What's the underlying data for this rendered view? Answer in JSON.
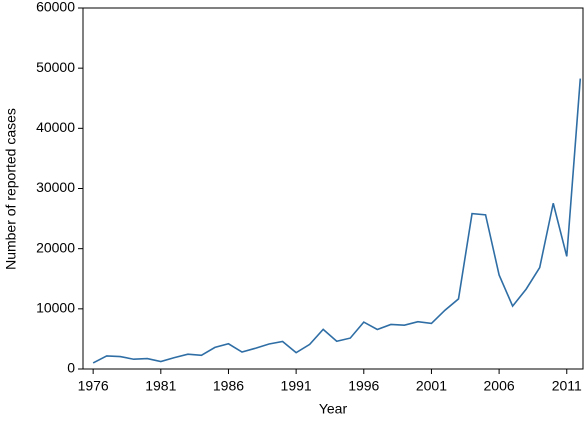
{
  "chart_data": {
    "type": "line",
    "x_label": "Year",
    "y_label": "Number of reported cases",
    "x": [
      1976,
      1977,
      1978,
      1979,
      1980,
      1981,
      1982,
      1983,
      1984,
      1985,
      1986,
      1987,
      1988,
      1989,
      1990,
      1991,
      1992,
      1993,
      1994,
      1995,
      1996,
      1997,
      1998,
      1999,
      2000,
      2001,
      2002,
      2003,
      2004,
      2005,
      2006,
      2007,
      2008,
      2009,
      2010,
      2011,
      2012
    ],
    "series": [
      {
        "color": "#2f6ea5",
        "values": [
          1010,
          2177,
          2063,
          1623,
          1730,
          1248,
          1895,
          2463,
          2276,
          3589,
          4195,
          2823,
          3450,
          4157,
          4570,
          2719,
          4083,
          6586,
          4617,
          5137,
          7796,
          6564,
          7405,
          7288,
          7867,
          7580,
          9771,
          11647,
          25827,
          25616,
          15632,
          10454,
          13278,
          16858,
          27550,
          18719,
          48277
        ]
      }
    ],
    "xlim": [
      1975.25,
      2012.2
    ],
    "xticks": [
      1976,
      1981,
      1986,
      1991,
      1996,
      2001,
      2006,
      2011
    ],
    "ylim": [
      0,
      60000
    ],
    "yticks": [
      0,
      10000,
      20000,
      30000,
      40000,
      50000,
      60000
    ]
  }
}
